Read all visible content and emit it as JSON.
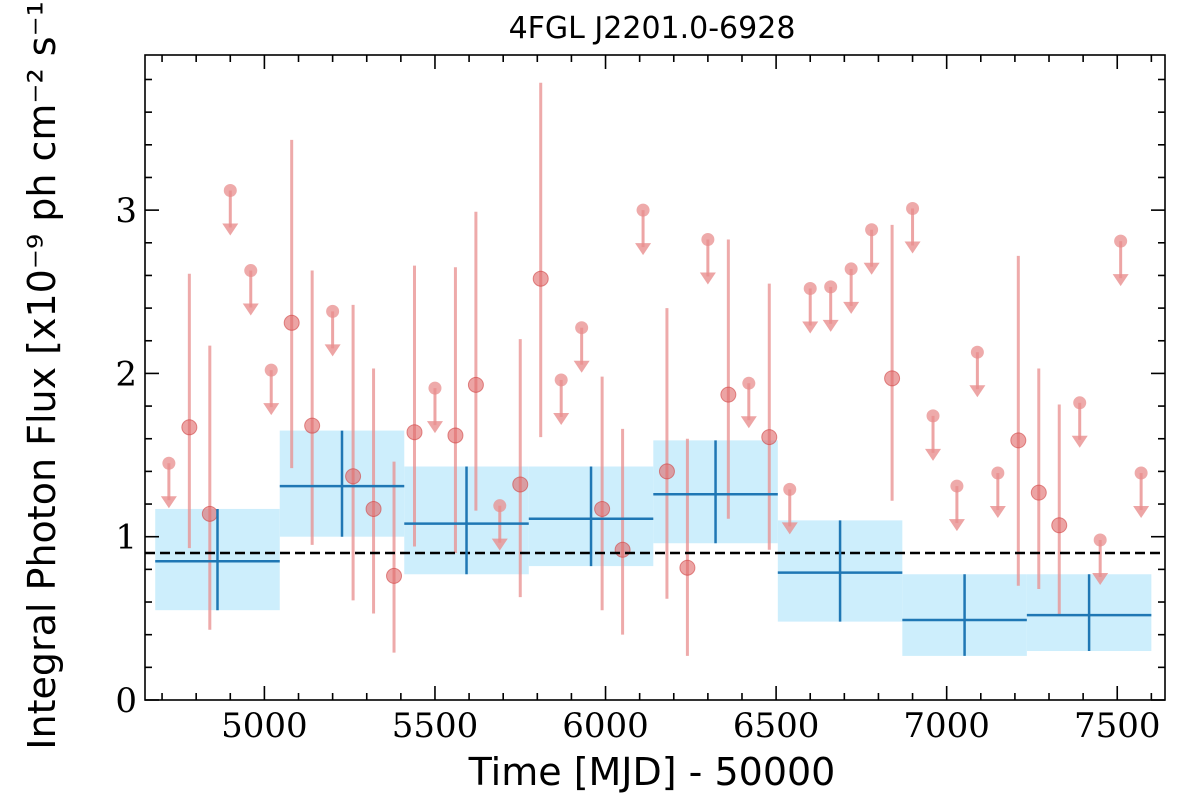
{
  "chart_data": {
    "type": "scatter",
    "title": "4FGL J2201.0-6928",
    "xlabel": "Time [MJD] - 50000",
    "ylabel": "Integral Photon Flux [x10⁻⁹ ph cm⁻² s⁻¹]",
    "xlim": [
      4650,
      7640
    ],
    "ylim": [
      0,
      3.95
    ],
    "x_ticks": [
      5000,
      5500,
      6000,
      6500,
      7000,
      7500
    ],
    "x_tick_labels": [
      "5000",
      "5500",
      "6000",
      "6500",
      "7000",
      "7500"
    ],
    "y_ticks": [
      0,
      1,
      2,
      3
    ],
    "y_tick_labels": [
      "0",
      "1",
      "2",
      "3"
    ],
    "grid": false,
    "reference_line": {
      "y": 0.9,
      "style": "dashed"
    },
    "colors": {
      "fine_bins": "#e88e8e",
      "coarse_bins": "#1f77b4",
      "coarse_band": "#cdeefc",
      "reference_line": "#000000"
    },
    "series": [
      {
        "kind": "coarse_bins",
        "points": [
          {
            "x0": 4680,
            "x1": 5045,
            "y": 0.85,
            "ylo": 0.55,
            "yhi": 1.17
          },
          {
            "x0": 5045,
            "x1": 5410,
            "y": 1.31,
            "ylo": 1.0,
            "yhi": 1.65
          },
          {
            "x0": 5410,
            "x1": 5775,
            "y": 1.08,
            "ylo": 0.77,
            "yhi": 1.43
          },
          {
            "x0": 5775,
            "x1": 6140,
            "y": 1.11,
            "ylo": 0.82,
            "yhi": 1.43
          },
          {
            "x0": 6140,
            "x1": 6505,
            "y": 1.26,
            "ylo": 0.96,
            "yhi": 1.59
          },
          {
            "x0": 6505,
            "x1": 6870,
            "y": 0.78,
            "ylo": 0.48,
            "yhi": 1.1
          },
          {
            "x0": 6870,
            "x1": 7235,
            "y": 0.49,
            "ylo": 0.27,
            "yhi": 0.77
          },
          {
            "x0": 7235,
            "x1": 7600,
            "y": 0.52,
            "ylo": 0.3,
            "yhi": 0.77
          }
        ]
      },
      {
        "kind": "fine_bins",
        "detections": [
          {
            "x": 4780,
            "y": 1.67,
            "ylo": 0.93,
            "yhi": 2.61
          },
          {
            "x": 4840,
            "y": 1.14,
            "ylo": 0.43,
            "yhi": 2.17
          },
          {
            "x": 5080,
            "y": 2.31,
            "ylo": 1.42,
            "yhi": 3.43
          },
          {
            "x": 5140,
            "y": 1.68,
            "ylo": 0.95,
            "yhi": 2.63
          },
          {
            "x": 5260,
            "y": 1.37,
            "ylo": 0.61,
            "yhi": 2.42
          },
          {
            "x": 5320,
            "y": 1.17,
            "ylo": 0.53,
            "yhi": 2.03
          },
          {
            "x": 5380,
            "y": 0.76,
            "ylo": 0.29,
            "yhi": 1.46
          },
          {
            "x": 5440,
            "y": 1.64,
            "ylo": 0.94,
            "yhi": 2.66
          },
          {
            "x": 5560,
            "y": 1.62,
            "ylo": 0.9,
            "yhi": 2.65
          },
          {
            "x": 5620,
            "y": 1.93,
            "ylo": 1.16,
            "yhi": 2.99
          },
          {
            "x": 5750,
            "y": 1.32,
            "ylo": 0.63,
            "yhi": 2.21
          },
          {
            "x": 5810,
            "y": 2.58,
            "ylo": 1.61,
            "yhi": 3.78
          },
          {
            "x": 5990,
            "y": 1.17,
            "ylo": 0.55,
            "yhi": 1.98
          },
          {
            "x": 6050,
            "y": 0.92,
            "ylo": 0.4,
            "yhi": 1.66
          },
          {
            "x": 6180,
            "y": 1.4,
            "ylo": 0.62,
            "yhi": 2.4
          },
          {
            "x": 6240,
            "y": 0.81,
            "ylo": 0.27,
            "yhi": 1.6
          },
          {
            "x": 6360,
            "y": 1.87,
            "ylo": 1.11,
            "yhi": 2.82
          },
          {
            "x": 6480,
            "y": 1.61,
            "ylo": 0.92,
            "yhi": 2.55
          },
          {
            "x": 6840,
            "y": 1.97,
            "ylo": 1.22,
            "yhi": 2.91
          },
          {
            "x": 7210,
            "y": 1.59,
            "ylo": 0.7,
            "yhi": 2.72
          },
          {
            "x": 7270,
            "y": 1.27,
            "ylo": 0.68,
            "yhi": 2.03
          },
          {
            "x": 7330,
            "y": 1.07,
            "ylo": 0.52,
            "yhi": 1.81
          }
        ],
        "upper_limits": [
          {
            "x": 4720,
            "y": 1.45
          },
          {
            "x": 4900,
            "y": 3.12
          },
          {
            "x": 4960,
            "y": 2.63
          },
          {
            "x": 5020,
            "y": 2.02
          },
          {
            "x": 5200,
            "y": 2.38
          },
          {
            "x": 5500,
            "y": 1.91
          },
          {
            "x": 5690,
            "y": 1.19
          },
          {
            "x": 5870,
            "y": 1.96
          },
          {
            "x": 5930,
            "y": 2.28
          },
          {
            "x": 6110,
            "y": 3.0
          },
          {
            "x": 6300,
            "y": 2.82
          },
          {
            "x": 6420,
            "y": 1.94
          },
          {
            "x": 6540,
            "y": 1.29
          },
          {
            "x": 6600,
            "y": 2.52
          },
          {
            "x": 6660,
            "y": 2.53
          },
          {
            "x": 6720,
            "y": 2.64
          },
          {
            "x": 6780,
            "y": 2.88
          },
          {
            "x": 6900,
            "y": 3.01
          },
          {
            "x": 6960,
            "y": 1.74
          },
          {
            "x": 7030,
            "y": 1.31
          },
          {
            "x": 7090,
            "y": 2.13
          },
          {
            "x": 7150,
            "y": 1.39
          },
          {
            "x": 7390,
            "y": 1.82
          },
          {
            "x": 7450,
            "y": 0.98
          },
          {
            "x": 7510,
            "y": 2.81
          },
          {
            "x": 7570,
            "y": 1.39
          }
        ]
      }
    ]
  }
}
